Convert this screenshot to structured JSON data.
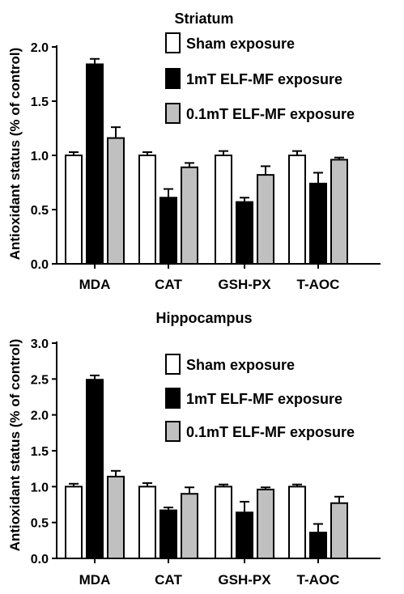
{
  "chart_data": [
    {
      "type": "bar",
      "title": "Striatum",
      "xlabel": "",
      "ylabel": "Antioxidant status (% of control)",
      "categories": [
        "MDA",
        "CAT",
        "GSH-PX",
        "T-AOC"
      ],
      "ylim": [
        0,
        2.0
      ],
      "yticks": [
        "0.0",
        "0.5",
        "1.0",
        "1.5",
        "2.0"
      ],
      "legend_position": "top-right",
      "series": [
        {
          "name": "Sham exposure",
          "color": "#ffffff",
          "values": [
            1.0,
            1.0,
            1.0,
            1.0
          ],
          "errors": [
            0.03,
            0.03,
            0.04,
            0.04
          ]
        },
        {
          "name": "1mT ELF-MF exposure",
          "color": "#000000",
          "values": [
            1.84,
            0.61,
            0.57,
            0.74
          ],
          "errors": [
            0.05,
            0.08,
            0.04,
            0.1
          ]
        },
        {
          "name": "0.1mT ELF-MF exposure",
          "color": "#c0c0c0",
          "values": [
            1.16,
            0.89,
            0.82,
            0.96
          ],
          "errors": [
            0.1,
            0.04,
            0.08,
            0.02
          ]
        }
      ]
    },
    {
      "type": "bar",
      "title": "Hippocampus",
      "xlabel": "",
      "ylabel": "Antioxidant status (% of control)",
      "categories": [
        "MDA",
        "CAT",
        "GSH-PX",
        "T-AOC"
      ],
      "ylim": [
        0,
        3.0
      ],
      "yticks": [
        "0.0",
        "0.5",
        "1.0",
        "1.5",
        "2.0",
        "2.5",
        "3.0"
      ],
      "legend_position": "top-right",
      "series": [
        {
          "name": "Sham exposure",
          "color": "#ffffff",
          "values": [
            1.0,
            1.0,
            1.0,
            1.0
          ],
          "errors": [
            0.04,
            0.05,
            0.03,
            0.03
          ]
        },
        {
          "name": "1mT ELF-MF exposure",
          "color": "#000000",
          "values": [
            2.49,
            0.67,
            0.64,
            0.36
          ],
          "errors": [
            0.06,
            0.04,
            0.15,
            0.12
          ]
        },
        {
          "name": "0.1mT ELF-MF exposure",
          "color": "#c0c0c0",
          "values": [
            1.14,
            0.9,
            0.96,
            0.77
          ],
          "errors": [
            0.08,
            0.09,
            0.03,
            0.09
          ]
        }
      ]
    }
  ]
}
